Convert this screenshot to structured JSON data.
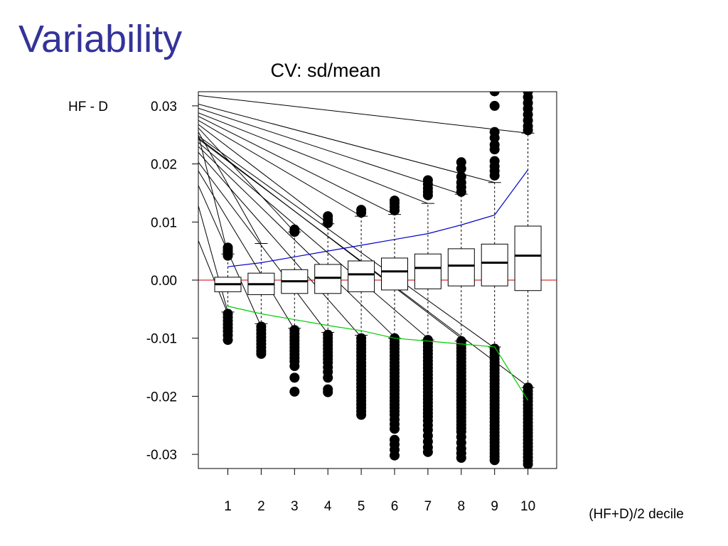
{
  "slide": {
    "title": "Variability"
  },
  "chart_data": {
    "type": "boxplot",
    "title": "CV: sd/mean",
    "ylabel": "HF - D",
    "xlabel": "(HF+D)/2 decile",
    "categories": [
      "1",
      "2",
      "3",
      "4",
      "5",
      "6",
      "7",
      "8",
      "9",
      "10"
    ],
    "ylim": [
      -0.032,
      0.032
    ],
    "yticks": [
      0.03,
      0.02,
      0.01,
      0.0,
      -0.01,
      -0.02,
      -0.03
    ],
    "ytick_labels": [
      "0.03",
      "0.02",
      "0.01",
      "0.00",
      "-0.01",
      "-0.02",
      "-0.03"
    ],
    "boxes": [
      {
        "q1": -0.002,
        "median": -0.0007,
        "q3": 0.0005,
        "whisker_low": -0.0055,
        "whisker_high": 0.0045
      },
      {
        "q1": -0.0025,
        "median": -0.0007,
        "q3": 0.0012,
        "whisker_low": -0.0075,
        "whisker_high": 0.0063
      },
      {
        "q1": -0.0023,
        "median": -0.0002,
        "q3": 0.0018,
        "whisker_low": -0.0083,
        "whisker_high": 0.0083
      },
      {
        "q1": -0.0023,
        "median": 0.0004,
        "q3": 0.0027,
        "whisker_low": -0.009,
        "whisker_high": 0.0097
      },
      {
        "q1": -0.002,
        "median": 0.001,
        "q3": 0.0033,
        "whisker_low": -0.0095,
        "whisker_high": 0.011
      },
      {
        "q1": -0.0017,
        "median": 0.0015,
        "q3": 0.0038,
        "whisker_low": -0.01,
        "whisker_high": 0.0113
      },
      {
        "q1": -0.0015,
        "median": 0.0021,
        "q3": 0.0045,
        "whisker_low": -0.0103,
        "whisker_high": 0.0132
      },
      {
        "q1": -0.001,
        "median": 0.0025,
        "q3": 0.0054,
        "whisker_low": -0.0105,
        "whisker_high": 0.0148
      },
      {
        "q1": -0.001,
        "median": 0.003,
        "q3": 0.0062,
        "whisker_low": -0.0115,
        "whisker_high": 0.0168
      },
      {
        "q1": -0.0018,
        "median": 0.0042,
        "q3": 0.0093,
        "whisker_low": -0.0185,
        "whisker_high": 0.0253
      }
    ],
    "outliers_high": [
      [
        0.0042,
        0.0048,
        0.0052,
        0.0056
      ],
      [],
      [
        0.0083,
        0.0087
      ],
      [
        0.0098,
        0.0104,
        0.011
      ],
      [
        0.0116,
        0.0121
      ],
      [
        0.012,
        0.0126,
        0.0132,
        0.0137
      ],
      [
        0.0146,
        0.0152,
        0.0158,
        0.0165,
        0.0172
      ],
      [
        0.0152,
        0.016,
        0.0168,
        0.0178,
        0.0192,
        0.0203
      ],
      [
        0.018,
        0.0188,
        0.0196,
        0.0205,
        0.0225,
        0.0233,
        0.0245,
        0.0255,
        0.03,
        0.0325
      ],
      [
        0.0258,
        0.0265,
        0.0275,
        0.0285,
        0.0295,
        0.0305,
        0.0315,
        0.0325
      ]
    ],
    "outliers_low": [
      [
        -0.0058,
        -0.0064,
        -0.007,
        -0.0076,
        -0.0082,
        -0.0088,
        -0.0095,
        -0.0103
      ],
      [
        -0.008,
        -0.0086,
        -0.0092,
        -0.0098,
        -0.0104,
        -0.011,
        -0.0116,
        -0.0122,
        -0.0127
      ],
      [
        -0.0086,
        -0.0092,
        -0.0098,
        -0.0104,
        -0.011,
        -0.0116,
        -0.0122,
        -0.0128,
        -0.0134,
        -0.014,
        -0.0148,
        -0.0168,
        -0.0192
      ],
      [
        -0.0094,
        -0.01,
        -0.0106,
        -0.0112,
        -0.0118,
        -0.0124,
        -0.013,
        -0.0136,
        -0.0142,
        -0.015,
        -0.0158,
        -0.0168,
        -0.0188,
        -0.0193
      ],
      [
        -0.01,
        -0.0106,
        -0.0112,
        -0.0118,
        -0.0124,
        -0.013,
        -0.0136,
        -0.0142,
        -0.0148,
        -0.0154,
        -0.016,
        -0.0166,
        -0.0172,
        -0.0178,
        -0.0184,
        -0.019,
        -0.0196,
        -0.0202,
        -0.0208,
        -0.0214,
        -0.022,
        -0.0226,
        -0.0232
      ],
      [
        -0.01,
        -0.0106,
        -0.0112,
        -0.0118,
        -0.0124,
        -0.013,
        -0.0136,
        -0.0142,
        -0.0148,
        -0.0154,
        -0.016,
        -0.0166,
        -0.0172,
        -0.0178,
        -0.0184,
        -0.019,
        -0.0196,
        -0.0202,
        -0.0208,
        -0.0214,
        -0.022,
        -0.0226,
        -0.0232,
        -0.024,
        -0.0248,
        -0.0256,
        -0.0275,
        -0.0283,
        -0.0292,
        -0.0302
      ],
      [
        -0.0103,
        -0.0109,
        -0.0115,
        -0.0121,
        -0.0127,
        -0.0133,
        -0.0139,
        -0.0145,
        -0.0151,
        -0.0157,
        -0.0163,
        -0.0169,
        -0.0175,
        -0.0181,
        -0.0187,
        -0.0193,
        -0.0199,
        -0.0205,
        -0.0211,
        -0.0217,
        -0.0223,
        -0.0229,
        -0.0235,
        -0.0242,
        -0.025,
        -0.0258,
        -0.0268,
        -0.0278,
        -0.0288,
        -0.0296
      ],
      [
        -0.0105,
        -0.0111,
        -0.0117,
        -0.0123,
        -0.0129,
        -0.0135,
        -0.0141,
        -0.0147,
        -0.0153,
        -0.0159,
        -0.0165,
        -0.0171,
        -0.0177,
        -0.0183,
        -0.0189,
        -0.0195,
        -0.0201,
        -0.0207,
        -0.0213,
        -0.0219,
        -0.0225,
        -0.0231,
        -0.0237,
        -0.0243,
        -0.0249,
        -0.0255,
        -0.0261,
        -0.027,
        -0.028,
        -0.029,
        -0.0298,
        -0.0306
      ],
      [
        -0.0118,
        -0.0124,
        -0.013,
        -0.0136,
        -0.0142,
        -0.0148,
        -0.0154,
        -0.016,
        -0.0166,
        -0.0172,
        -0.0178,
        -0.0184,
        -0.019,
        -0.0196,
        -0.0202,
        -0.0208,
        -0.0214,
        -0.022,
        -0.0226,
        -0.0232,
        -0.0238,
        -0.0244,
        -0.025,
        -0.0256,
        -0.0262,
        -0.0268,
        -0.0274,
        -0.028,
        -0.0286,
        -0.0292,
        -0.0298,
        -0.0304,
        -0.031
      ],
      [
        -0.0185,
        -0.0191,
        -0.0197,
        -0.0203,
        -0.0209,
        -0.0215,
        -0.0221,
        -0.0227,
        -0.0233,
        -0.0239,
        -0.0245,
        -0.0251,
        -0.0257,
        -0.0263,
        -0.0269,
        -0.0275,
        -0.0281,
        -0.0287,
        -0.0293,
        -0.0299,
        -0.0305,
        -0.0311,
        -0.0317
      ]
    ],
    "reference_line": {
      "y": 0.0,
      "color": "#cc0000"
    },
    "lines": [
      {
        "color": "#0000cc",
        "values": [
          0.0023,
          0.003,
          0.004,
          0.005,
          0.006,
          0.007,
          0.008,
          0.0095,
          0.0112,
          0.019
        ]
      },
      {
        "color": "#00cc00",
        "values": [
          -0.0045,
          -0.0058,
          -0.0068,
          -0.0078,
          -0.0087,
          -0.01,
          -0.0105,
          -0.011,
          -0.0115,
          -0.0207
        ]
      }
    ],
    "callout_lines": [
      {
        "start": 0.0128,
        "end_category": 1,
        "end": -0.0055
      },
      {
        "start": 0.0068,
        "end_category": 1,
        "end": -0.0058
      },
      {
        "start": 0.0163,
        "end_category": 2,
        "end": -0.008
      },
      {
        "start": 0.0188,
        "end_category": 3,
        "end": -0.0085
      },
      {
        "start": 0.0203,
        "end_category": 4,
        "end": -0.0092
      },
      {
        "start": 0.022,
        "end_category": 5,
        "end": -0.0098
      },
      {
        "start": 0.023,
        "end_category": 6,
        "end": -0.0098
      },
      {
        "start": 0.0237,
        "end_category": 7,
        "end": -0.01
      },
      {
        "start": 0.0245,
        "end_category": 8,
        "end": -0.01
      },
      {
        "start": 0.0248,
        "end_category": 9,
        "end": -0.0117
      },
      {
        "start": 0.0243,
        "end_category": 10,
        "end": -0.0183
      },
      {
        "start": 0.025,
        "end_category": 1,
        "end": 0.0045
      },
      {
        "start": 0.0255,
        "end_category": 2,
        "end": 0.0063
      },
      {
        "start": 0.0262,
        "end_category": 3,
        "end": 0.0083
      },
      {
        "start": 0.0268,
        "end_category": 4,
        "end": 0.0098
      },
      {
        "start": 0.0275,
        "end_category": 5,
        "end": 0.011
      },
      {
        "start": 0.0282,
        "end_category": 6,
        "end": 0.0113
      },
      {
        "start": 0.0288,
        "end_category": 7,
        "end": 0.0132
      },
      {
        "start": 0.0296,
        "end_category": 8,
        "end": 0.0148
      },
      {
        "start": 0.0303,
        "end_category": 9,
        "end": 0.0168
      },
      {
        "start": 0.0318,
        "end_category": 10,
        "end": 0.0253
      }
    ]
  }
}
